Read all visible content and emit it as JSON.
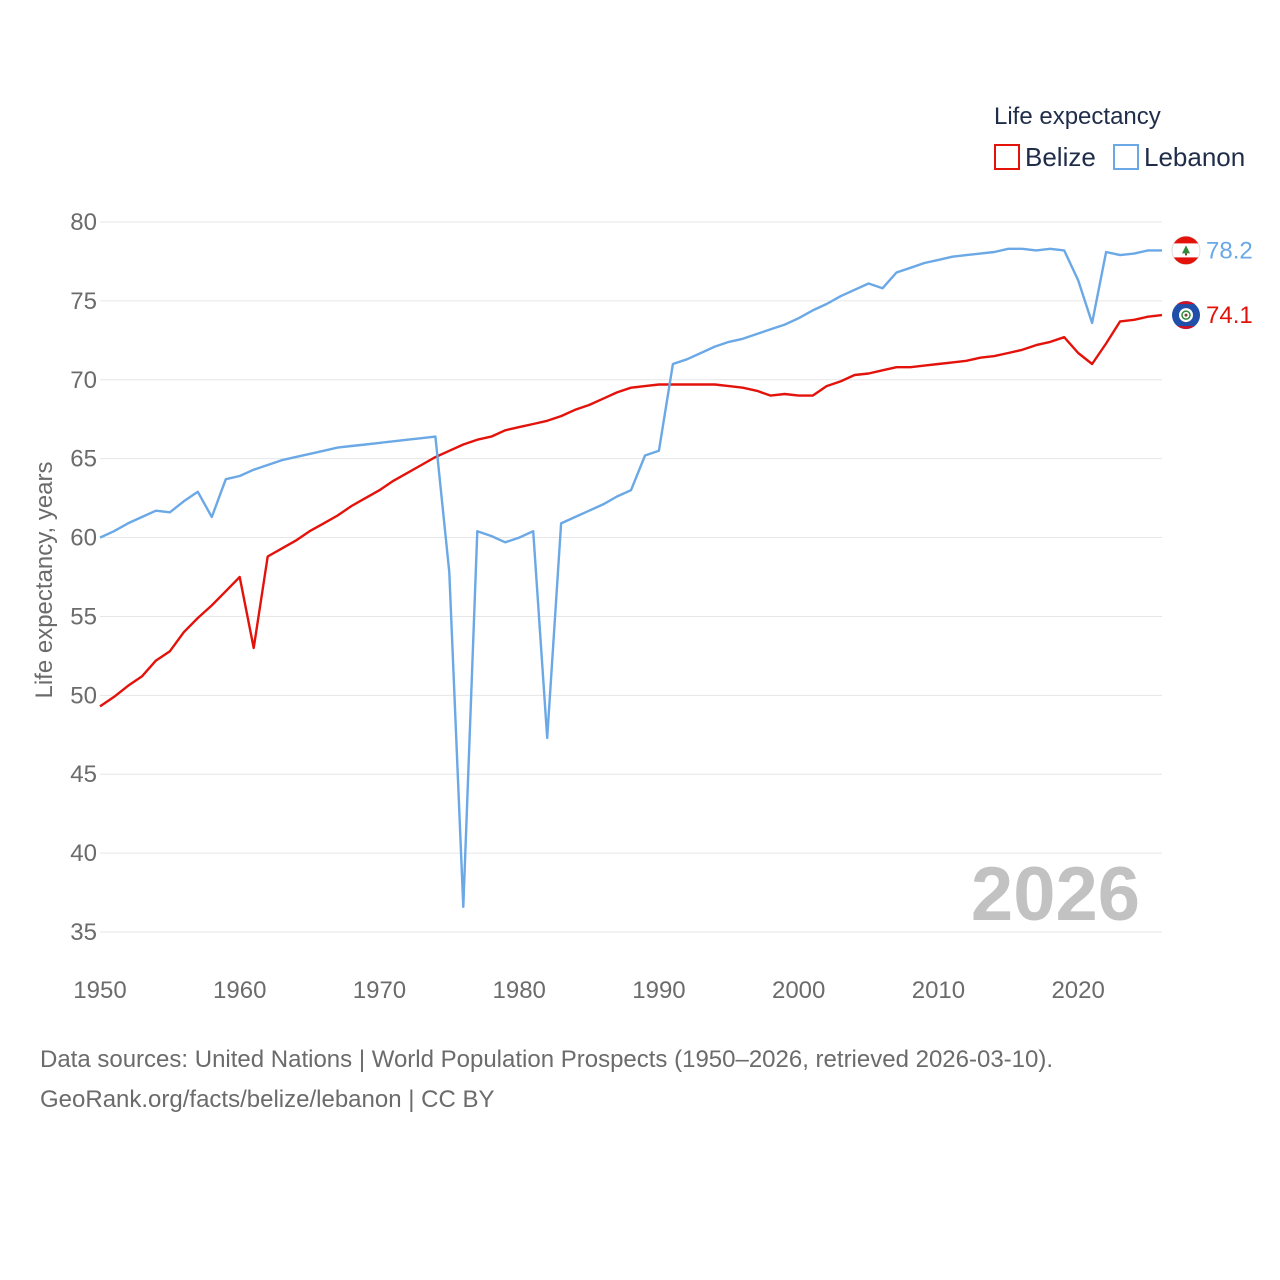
{
  "chart_data": {
    "type": "line",
    "legend_title": "Life expectancy",
    "ylabel": "Life expectancy, years",
    "xlabel": "",
    "xlim": [
      1950,
      2026
    ],
    "ylim": [
      35,
      80
    ],
    "x_ticks": [
      "1950",
      "1960",
      "1970",
      "1980",
      "1990",
      "2000",
      "2010",
      "2020"
    ],
    "y_ticks": [
      "35",
      "40",
      "45",
      "50",
      "55",
      "60",
      "65",
      "70",
      "75",
      "80"
    ],
    "year_badge": "2026",
    "series": [
      {
        "name": "Belize",
        "color": "#e3120b",
        "end_label": "74.1",
        "points": [
          [
            1950,
            49.3
          ],
          [
            1951,
            49.9
          ],
          [
            1952,
            50.6
          ],
          [
            1953,
            51.2
          ],
          [
            1954,
            52.2
          ],
          [
            1955,
            52.8
          ],
          [
            1956,
            54.0
          ],
          [
            1957,
            54.9
          ],
          [
            1958,
            55.7
          ],
          [
            1959,
            56.6
          ],
          [
            1960,
            57.5
          ],
          [
            1961,
            53.0
          ],
          [
            1962,
            58.8
          ],
          [
            1963,
            59.3
          ],
          [
            1964,
            59.8
          ],
          [
            1965,
            60.4
          ],
          [
            1966,
            60.9
          ],
          [
            1967,
            61.4
          ],
          [
            1968,
            62.0
          ],
          [
            1969,
            62.5
          ],
          [
            1970,
            63.0
          ],
          [
            1971,
            63.6
          ],
          [
            1972,
            64.1
          ],
          [
            1973,
            64.6
          ],
          [
            1974,
            65.1
          ],
          [
            1975,
            65.5
          ],
          [
            1976,
            65.9
          ],
          [
            1977,
            66.2
          ],
          [
            1978,
            66.4
          ],
          [
            1979,
            66.8
          ],
          [
            1980,
            67.0
          ],
          [
            1981,
            67.2
          ],
          [
            1982,
            67.4
          ],
          [
            1983,
            67.7
          ],
          [
            1984,
            68.1
          ],
          [
            1985,
            68.4
          ],
          [
            1986,
            68.8
          ],
          [
            1987,
            69.2
          ],
          [
            1988,
            69.5
          ],
          [
            1989,
            69.6
          ],
          [
            1990,
            69.7
          ],
          [
            1991,
            69.7
          ],
          [
            1992,
            69.7
          ],
          [
            1993,
            69.7
          ],
          [
            1994,
            69.7
          ],
          [
            1995,
            69.6
          ],
          [
            1996,
            69.5
          ],
          [
            1997,
            69.3
          ],
          [
            1998,
            69.0
          ],
          [
            1999,
            69.1
          ],
          [
            2000,
            69.0
          ],
          [
            2001,
            69.0
          ],
          [
            2002,
            69.6
          ],
          [
            2003,
            69.9
          ],
          [
            2004,
            70.3
          ],
          [
            2005,
            70.4
          ],
          [
            2006,
            70.6
          ],
          [
            2007,
            70.8
          ],
          [
            2008,
            70.8
          ],
          [
            2009,
            70.9
          ],
          [
            2010,
            71.0
          ],
          [
            2011,
            71.1
          ],
          [
            2012,
            71.2
          ],
          [
            2013,
            71.4
          ],
          [
            2014,
            71.5
          ],
          [
            2015,
            71.7
          ],
          [
            2016,
            71.9
          ],
          [
            2017,
            72.2
          ],
          [
            2018,
            72.4
          ],
          [
            2019,
            72.7
          ],
          [
            2020,
            71.7
          ],
          [
            2021,
            71.0
          ],
          [
            2022,
            72.3
          ],
          [
            2023,
            73.7
          ],
          [
            2024,
            73.8
          ],
          [
            2025,
            74.0
          ],
          [
            2026,
            74.1
          ]
        ]
      },
      {
        "name": "Lebanon",
        "color": "#6aa8e6",
        "end_label": "78.2",
        "points": [
          [
            1950,
            60.0
          ],
          [
            1951,
            60.4
          ],
          [
            1952,
            60.9
          ],
          [
            1953,
            61.3
          ],
          [
            1954,
            61.7
          ],
          [
            1955,
            61.6
          ],
          [
            1956,
            62.3
          ],
          [
            1957,
            62.9
          ],
          [
            1958,
            61.3
          ],
          [
            1959,
            63.7
          ],
          [
            1960,
            63.9
          ],
          [
            1961,
            64.3
          ],
          [
            1962,
            64.6
          ],
          [
            1963,
            64.9
          ],
          [
            1964,
            65.1
          ],
          [
            1965,
            65.3
          ],
          [
            1966,
            65.5
          ],
          [
            1967,
            65.7
          ],
          [
            1968,
            65.8
          ],
          [
            1969,
            65.9
          ],
          [
            1970,
            66.0
          ],
          [
            1971,
            66.1
          ],
          [
            1972,
            66.2
          ],
          [
            1973,
            66.3
          ],
          [
            1974,
            66.4
          ],
          [
            1975,
            57.8
          ],
          [
            1976,
            36.6
          ],
          [
            1977,
            60.4
          ],
          [
            1978,
            60.1
          ],
          [
            1979,
            59.7
          ],
          [
            1980,
            60.0
          ],
          [
            1981,
            60.4
          ],
          [
            1982,
            47.3
          ],
          [
            1983,
            60.9
          ],
          [
            1984,
            61.3
          ],
          [
            1985,
            61.7
          ],
          [
            1986,
            62.1
          ],
          [
            1987,
            62.6
          ],
          [
            1988,
            63.0
          ],
          [
            1989,
            65.2
          ],
          [
            1990,
            65.5
          ],
          [
            1991,
            71.0
          ],
          [
            1992,
            71.3
          ],
          [
            1993,
            71.7
          ],
          [
            1994,
            72.1
          ],
          [
            1995,
            72.4
          ],
          [
            1996,
            72.6
          ],
          [
            1997,
            72.9
          ],
          [
            1998,
            73.2
          ],
          [
            1999,
            73.5
          ],
          [
            2000,
            73.9
          ],
          [
            2001,
            74.4
          ],
          [
            2002,
            74.8
          ],
          [
            2003,
            75.3
          ],
          [
            2004,
            75.7
          ],
          [
            2005,
            76.1
          ],
          [
            2006,
            75.8
          ],
          [
            2007,
            76.8
          ],
          [
            2008,
            77.1
          ],
          [
            2009,
            77.4
          ],
          [
            2010,
            77.6
          ],
          [
            2011,
            77.8
          ],
          [
            2012,
            77.9
          ],
          [
            2013,
            78.0
          ],
          [
            2014,
            78.1
          ],
          [
            2015,
            78.3
          ],
          [
            2016,
            78.3
          ],
          [
            2017,
            78.2
          ],
          [
            2018,
            78.3
          ],
          [
            2019,
            78.2
          ],
          [
            2020,
            76.3
          ],
          [
            2021,
            73.6
          ],
          [
            2022,
            78.1
          ],
          [
            2023,
            77.9
          ],
          [
            2024,
            78.0
          ],
          [
            2025,
            78.2
          ],
          [
            2026,
            78.2
          ]
        ]
      }
    ]
  },
  "footer": {
    "line1": "Data sources: United Nations | World Population Prospects (1950–2026, retrieved 2026-03-10).",
    "line2": "GeoRank.org/facts/belize/lebanon | CC BY"
  }
}
